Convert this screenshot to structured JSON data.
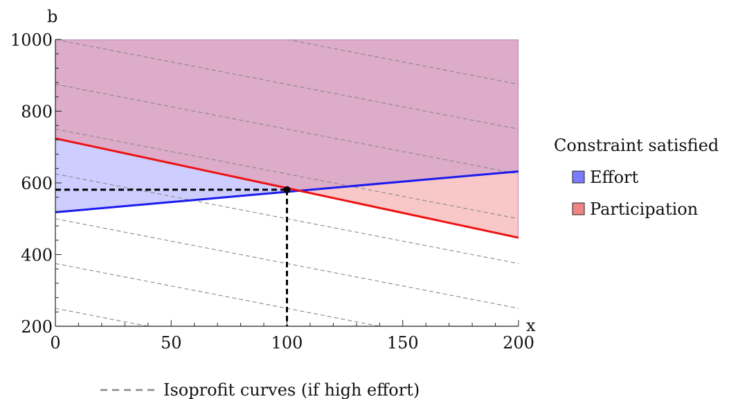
{
  "chart_data": {
    "type": "line",
    "xlabel": "x",
    "ylabel": "b",
    "xlim": [
      0,
      200
    ],
    "ylim": [
      200,
      1000
    ],
    "x_ticks": [
      0,
      50,
      100,
      150,
      200
    ],
    "y_ticks": [
      200,
      400,
      600,
      800,
      1000
    ],
    "x_tick_labels": [
      "0",
      "50",
      "100",
      "150",
      "200"
    ],
    "y_tick_labels": [
      "200",
      "400",
      "600",
      "800",
      "1000"
    ],
    "grid": false,
    "legend_placement": "right",
    "series": [
      {
        "name": "Effort",
        "color": "#1a1aee",
        "fill_color": "#7b7bff",
        "x": [
          0,
          200
        ],
        "y": [
          518,
          632
        ]
      },
      {
        "name": "Participation",
        "color": "#ee1111",
        "fill_color": "#f08484",
        "x": [
          0,
          200
        ],
        "y": [
          724,
          447
        ]
      }
    ],
    "isoprofit": {
      "name": "Isoprofit curves (if high effort)",
      "color": "#888888",
      "slope": -1.25,
      "intercepts": [
        250,
        375,
        500,
        625,
        750,
        875,
        1000,
        1125,
        1250
      ]
    },
    "optimum": {
      "x": 100,
      "y": 581
    },
    "legend_title": "Constraint satisfied",
    "legend_entries": [
      {
        "label": "Effort",
        "color": "#7b7bff"
      },
      {
        "label": "Participation",
        "color": "#f08484"
      }
    ]
  }
}
